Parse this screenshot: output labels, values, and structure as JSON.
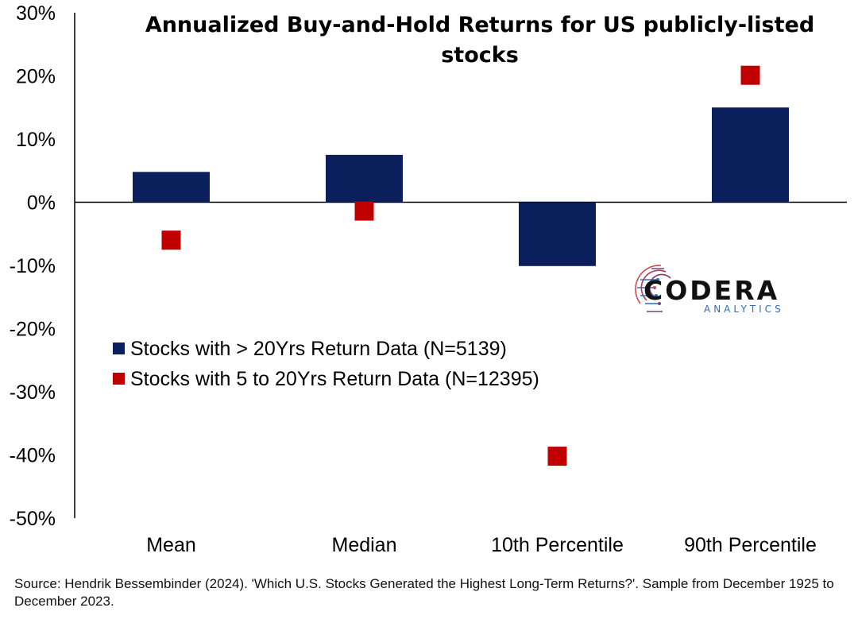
{
  "chart_data": {
    "type": "bar",
    "title_lines": [
      "Annualized Buy-and-Hold Returns for US publicly-listed",
      "stocks"
    ],
    "categories": [
      "Mean",
      "Median",
      "10th Percentile",
      "90th Percentile"
    ],
    "series": [
      {
        "name": "Stocks with > 20Yrs Return Data (N=5139)",
        "mark": "bar",
        "color": "#0b1f5c",
        "values": [
          4.8,
          7.5,
          -10.1,
          15.0
        ]
      },
      {
        "name": "Stocks with 5 to 20Yrs Return Data (N=12395)",
        "mark": "square",
        "color": "#c00000",
        "values": [
          -6.0,
          -1.4,
          -40.2,
          20.1
        ]
      }
    ],
    "ylim": [
      -50,
      30
    ],
    "yticks": [
      30,
      20,
      10,
      0,
      -10,
      -20,
      -30,
      -40,
      -50
    ],
    "ytick_labels": [
      "30%",
      "20%",
      "10%",
      "0%",
      "-10%",
      "-20%",
      "-30%",
      "-40%",
      "-50%"
    ],
    "grid": false,
    "legend_position": "center-left"
  },
  "logo": {
    "word": "CODERA",
    "sub": "ANALYTICS"
  },
  "source": "Source: Hendrik Bessembinder (2024). 'Which U.S. Stocks Generated the Highest Long-Term Returns?'. Sample from December 1925 to December 2023."
}
